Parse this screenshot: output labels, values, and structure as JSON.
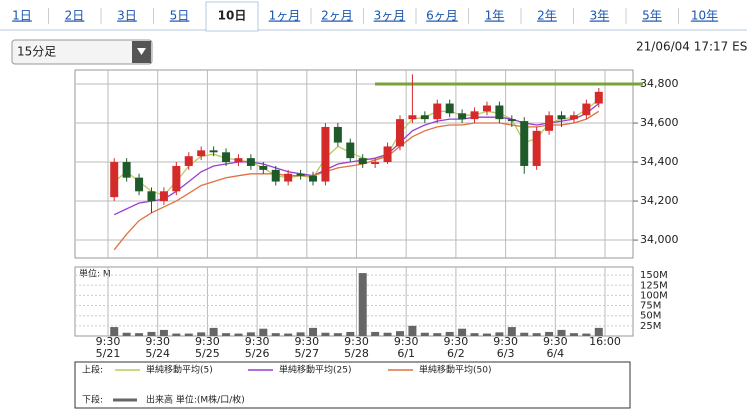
{
  "tabs": [
    "1日",
    "2日",
    "3日",
    "5日",
    "10日",
    "1ヶ月",
    "2ヶ月",
    "3ヶ月",
    "6ヶ月",
    "1年",
    "2年",
    "3年",
    "5年",
    "10年"
  ],
  "interval_select": "15分足",
  "timestamp": "21/06/04 17:17 ES",
  "chart_data": [
    {
      "type": "candlestick",
      "up_color": "#d42a2a",
      "down_color": "#1f5a2a",
      "grid": true,
      "ylim": [
        33908,
        34872
      ],
      "yticks": [
        {
          "value": 34000,
          "label": "34,000"
        },
        {
          "value": 34200,
          "label": "34,200"
        },
        {
          "value": 34400,
          "label": "34,400"
        },
        {
          "value": 34600,
          "label": "34,600"
        },
        {
          "value": 34800,
          "label": "34,800"
        }
      ],
      "reference_line": {
        "value": 34800,
        "color": "#7aa23a"
      },
      "x_labels": [
        {
          "time": "9:30",
          "date": "5/21"
        },
        {
          "time": "9:30",
          "date": "5/24"
        },
        {
          "time": "9:30",
          "date": "5/25"
        },
        {
          "time": "9:30",
          "date": "5/26"
        },
        {
          "time": "9:30",
          "date": "5/27"
        },
        {
          "time": "9:30",
          "date": "5/28"
        },
        {
          "time": "9:30",
          "date": "6/1"
        },
        {
          "time": "9:30",
          "date": "6/2"
        },
        {
          "time": "9:30",
          "date": "6/3"
        },
        {
          "time": "9:30",
          "date": "6/4"
        },
        {
          "time": "16:00"
        }
      ],
      "open": [
        34220,
        34400,
        34320,
        34250,
        34200,
        34250,
        34380,
        34430,
        34460,
        34450,
        34400,
        34420,
        34380,
        34360,
        34300,
        34340,
        34330,
        34300,
        34580,
        34500,
        34420,
        34390,
        34400,
        34480,
        34620,
        34640,
        34620,
        34700,
        34650,
        34620,
        34660,
        34690,
        34620,
        34610,
        34380,
        34560,
        34640,
        34620,
        34640,
        34700
      ],
      "high": [
        34420,
        34420,
        34340,
        34270,
        34270,
        34400,
        34450,
        34480,
        34480,
        34470,
        34440,
        34440,
        34400,
        34380,
        34360,
        34360,
        34350,
        34600,
        34600,
        34520,
        34440,
        34420,
        34500,
        34640,
        34850,
        34660,
        34720,
        34720,
        34670,
        34680,
        34710,
        34710,
        34640,
        34630,
        34580,
        34660,
        34660,
        34660,
        34720,
        34780
      ],
      "low": [
        34200,
        34300,
        34230,
        34140,
        34180,
        34230,
        34360,
        34410,
        34430,
        34380,
        34380,
        34360,
        34340,
        34280,
        34280,
        34310,
        34280,
        34280,
        34480,
        34400,
        34370,
        34370,
        34390,
        34460,
        34600,
        34600,
        34600,
        34630,
        34600,
        34600,
        34640,
        34600,
        34580,
        34340,
        34360,
        34540,
        34580,
        34600,
        34620,
        34680
      ],
      "close": [
        34400,
        34320,
        34250,
        34200,
        34250,
        34380,
        34430,
        34460,
        34450,
        34400,
        34420,
        34380,
        34360,
        34300,
        34340,
        34330,
        34300,
        34580,
        34500,
        34420,
        34390,
        34400,
        34480,
        34620,
        34640,
        34620,
        34700,
        34650,
        34620,
        34660,
        34690,
        34620,
        34610,
        34380,
        34560,
        34640,
        34620,
        34640,
        34700,
        34760
      ],
      "series": [
        {
          "name": "単純移動平均(5)",
          "color": "#b8cc5a",
          "values": [
            34300,
            34350,
            34300,
            34250,
            34230,
            34300,
            34380,
            34430,
            34440,
            34420,
            34410,
            34400,
            34370,
            34330,
            34320,
            34330,
            34320,
            34420,
            34480,
            34450,
            34420,
            34410,
            34440,
            34550,
            34620,
            34630,
            34660,
            34660,
            34640,
            34640,
            34660,
            34650,
            34620,
            34500,
            34520,
            34600,
            34620,
            34630,
            34670,
            34720
          ]
        },
        {
          "name": "単純移動平均(25)",
          "color": "#9b3fd0",
          "values": [
            34130,
            34160,
            34190,
            34200,
            34210,
            34250,
            34300,
            34350,
            34380,
            34390,
            34400,
            34400,
            34390,
            34370,
            34350,
            34340,
            34330,
            34360,
            34390,
            34400,
            34410,
            34420,
            34440,
            34500,
            34560,
            34590,
            34610,
            34620,
            34620,
            34630,
            34630,
            34630,
            34620,
            34600,
            34590,
            34600,
            34610,
            34620,
            34650,
            34700
          ]
        },
        {
          "name": "単純移動平均(50)",
          "color": "#e07040",
          "values": [
            33950,
            34030,
            34100,
            34140,
            34170,
            34200,
            34240,
            34280,
            34300,
            34320,
            34330,
            34340,
            34340,
            34340,
            34330,
            34330,
            34330,
            34350,
            34370,
            34380,
            34390,
            34410,
            34430,
            34480,
            34530,
            34560,
            34580,
            34590,
            34590,
            34600,
            34600,
            34600,
            34590,
            34580,
            34580,
            34590,
            34590,
            34600,
            34620,
            34660
          ]
        }
      ]
    },
    {
      "type": "bar",
      "unit_label": "単位: M",
      "name": "出来高 単位:(M株/口/枚)",
      "color": "#666666",
      "ylim": [
        0,
        170
      ],
      "yticks": [
        {
          "value": 25,
          "label": "25M"
        },
        {
          "value": 50,
          "label": "50M"
        },
        {
          "value": 75,
          "label": "75M"
        },
        {
          "value": 100,
          "label": "100M"
        },
        {
          "value": 125,
          "label": "125M"
        },
        {
          "value": 150,
          "label": "150M"
        }
      ],
      "values": [
        22,
        8,
        7,
        10,
        15,
        6,
        6,
        9,
        20,
        7,
        6,
        9,
        18,
        7,
        6,
        9,
        20,
        8,
        7,
        10,
        155,
        10,
        8,
        12,
        25,
        8,
        7,
        10,
        18,
        7,
        6,
        9,
        22,
        8,
        7,
        10,
        15,
        7,
        6,
        20
      ]
    }
  ],
  "legend": {
    "upper": "上段:",
    "lower": "下段:"
  }
}
